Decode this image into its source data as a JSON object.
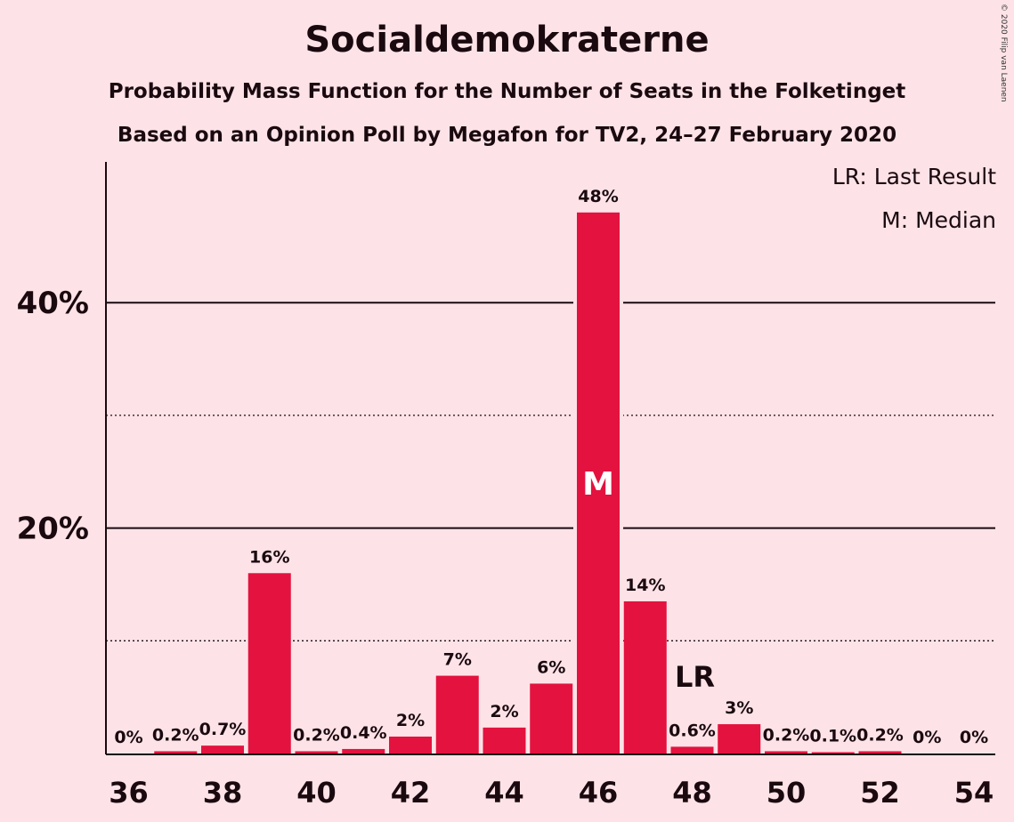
{
  "title": "Socialdemokraterne",
  "subtitle1": "Probability Mass Function for the Number of Seats in the Folketinget",
  "subtitle2": "Based on an Opinion Poll by Megafon for TV2, 24–27 February 2020",
  "copyright": "© 2020 Filip van Laenen",
  "legend": {
    "last_result": "LR: Last Result",
    "median": "M: Median"
  },
  "colors": {
    "background": "#fde3e7",
    "bar": "#e3123f",
    "text": "#1a0a10"
  },
  "chart_data": {
    "type": "bar",
    "categories": [
      36,
      37,
      38,
      39,
      40,
      41,
      42,
      43,
      44,
      45,
      46,
      47,
      48,
      49,
      50,
      51,
      52,
      53,
      54
    ],
    "values": [
      0,
      0.2,
      0.7,
      16,
      0.2,
      0.4,
      1.5,
      6.9,
      2.3,
      6.2,
      48,
      13.5,
      0.6,
      2.6,
      0.2,
      0.1,
      0.2,
      0,
      0
    ],
    "data_labels": [
      "0%",
      "0.2%",
      "0.7%",
      "16%",
      "0.2%",
      "0.4%",
      "2%",
      "7%",
      "2%",
      "6%",
      "48%",
      "14%",
      "0.6%",
      "3%",
      "0.2%",
      "0.1%",
      "0.2%",
      "0%",
      "0%"
    ],
    "x_tick_labels": [
      "36",
      "38",
      "40",
      "42",
      "44",
      "46",
      "48",
      "50",
      "52",
      "54"
    ],
    "y_ticks": [
      20,
      40
    ],
    "y_tick_labels": [
      "20%",
      "40%"
    ],
    "ylim": [
      0,
      52
    ],
    "median_seat": 46,
    "median_marker": "M",
    "last_result_seat": 48,
    "last_result_marker": "LR",
    "grid": "solid lines at 20% and 40%, dotted lines at 10% and 30%"
  }
}
